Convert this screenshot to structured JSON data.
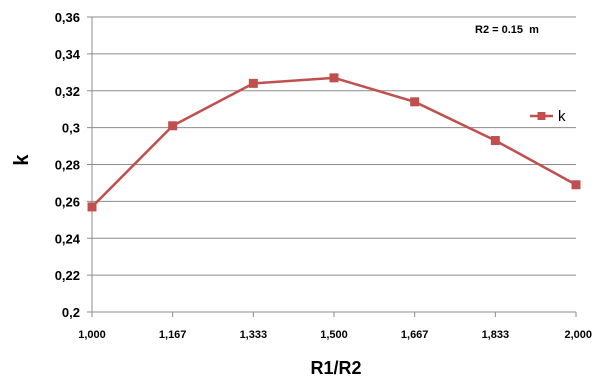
{
  "chart_data": {
    "type": "line",
    "categories": [
      "1,000",
      "1,167",
      "1,333",
      "1,500",
      "1,667",
      "1,833",
      "2,000"
    ],
    "series": [
      {
        "name": "k",
        "values": [
          0.257,
          0.301,
          0.324,
          0.327,
          0.314,
          0.293,
          0.269
        ]
      }
    ],
    "ylabel": "k",
    "xlabel": "R1/R2",
    "ylim": [
      0.2,
      0.36
    ],
    "yticks": [
      "0,2",
      "0,22",
      "0,24",
      "0,26",
      "0,28",
      "0,3",
      "0,32",
      "0,34",
      "0,36"
    ],
    "annotation": "R2 = 0.15  m",
    "grid": "horizontal",
    "legend": "right",
    "series_color": "#c0504d"
  }
}
